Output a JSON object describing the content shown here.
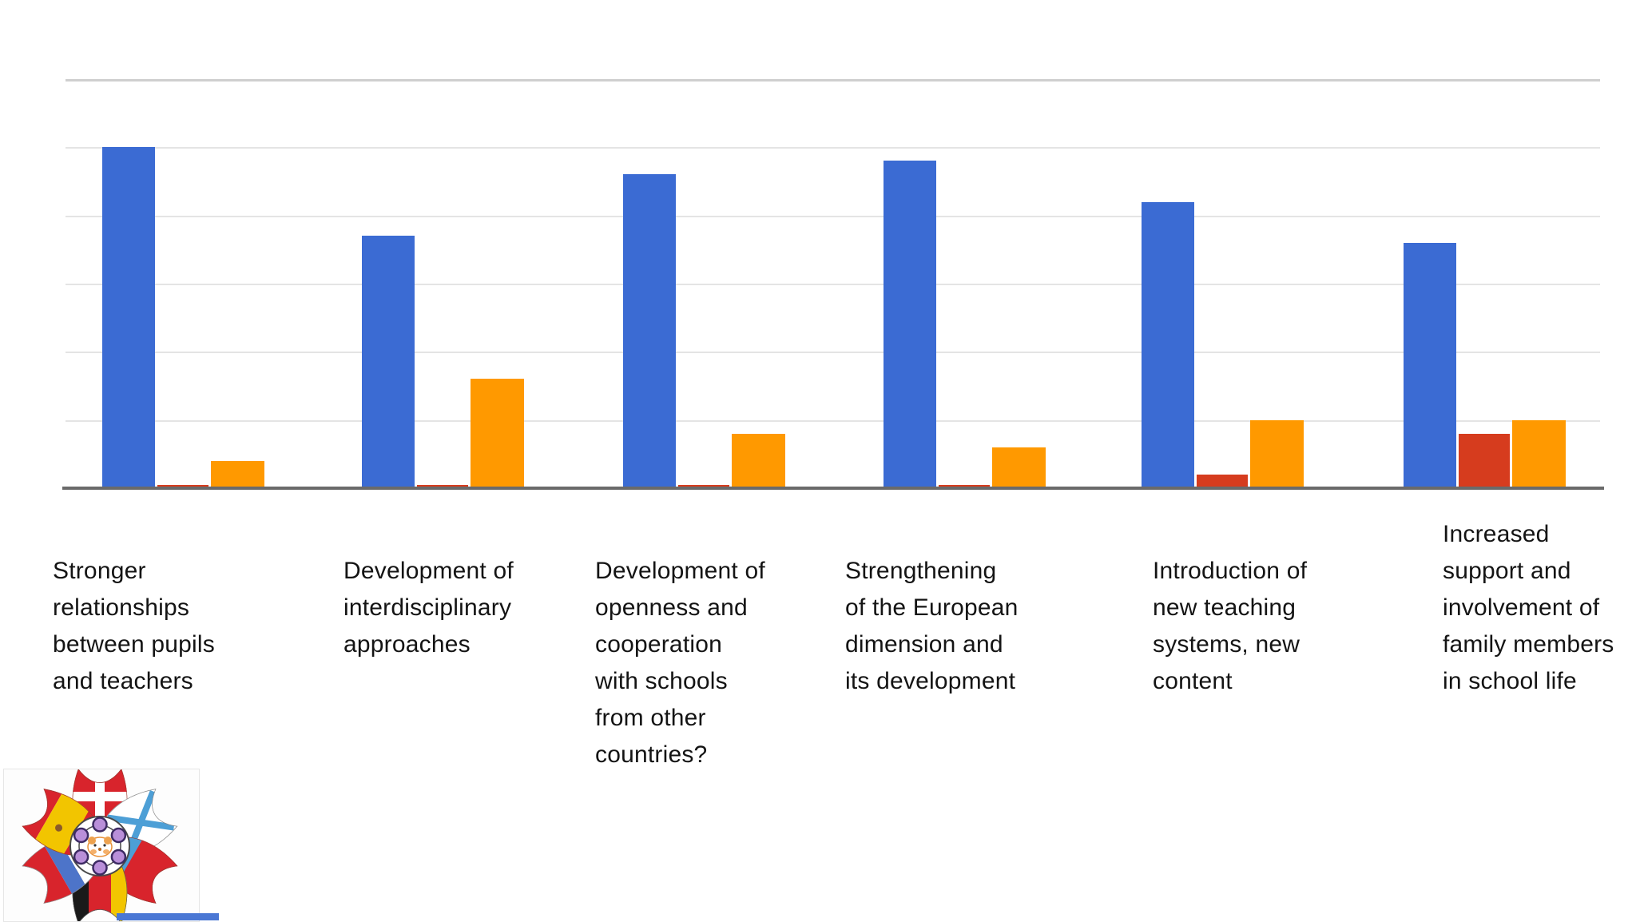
{
  "slide": {
    "background": "#ffffff"
  },
  "colors": {
    "bar_blue": "#3B6BD3",
    "bar_red": "#D63C1E",
    "bar_orange": "#FF9900",
    "axis": "#6A6A6A",
    "gridline": "#E4E4E4",
    "gridline_top": "#CFCFCF",
    "label_text": "#141414"
  },
  "chart_data": {
    "type": "bar",
    "title": "",
    "xlabel": "",
    "ylabel": "",
    "legend": "none",
    "grid": "horizontal gridlines only, no axis tick labels visible",
    "ylim": [
      0,
      60
    ],
    "gridline_step": 10,
    "categories": [
      "Stronger\nrelationships\nbetween pupils\nand teachers",
      "Development of\ninterdisciplinary\napproaches",
      "Development of\nopenness and\ncooperation\nwith schools\nfrom other\ncountries?",
      "Strengthening\nof the European\ndimension and\nits development",
      "Introduction of\nnew teaching\nsystems, new\ncontent",
      "Increased\nsupport and\ninvolvement of\nfamily members\nin school life"
    ],
    "series": [
      {
        "name": "Blue",
        "color": "#3B6BD3",
        "values": [
          50,
          37,
          46,
          48,
          42,
          36
        ]
      },
      {
        "name": "Red",
        "color": "#D63C1E",
        "values": [
          0.5,
          0.5,
          0.5,
          0.5,
          2,
          8
        ]
      },
      {
        "name": "Orange",
        "color": "#FF9900",
        "values": [
          4,
          16,
          8,
          6,
          10,
          10
        ]
      }
    ]
  },
  "logo": {
    "name": "flag-flower-logo",
    "description": "Flower logo with six petals drawn as European flags (Denmark, Scotland saltire, Czech, Germany, white-blue-red tricolour, Spain) around a white circle ringed by six purple dots with a small hamster face in the middle",
    "petal_colors": {
      "red": "#D8242C",
      "yellow": "#F2C500",
      "blue": "#4D9FD6",
      "black": "#1A1A1A",
      "white": "#FFFFFF",
      "purple_dots": "#B98FD9"
    },
    "bottom_strip_color": "#4A77D4"
  }
}
